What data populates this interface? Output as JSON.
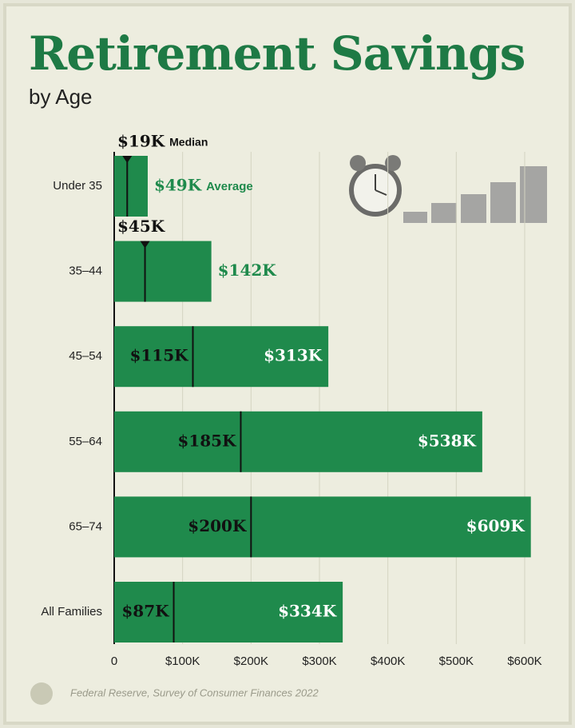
{
  "chart_data": {
    "type": "bar",
    "orientation": "horizontal",
    "title": "Retirement Savings",
    "subtitle": "by Age",
    "source": "Federal Reserve, Survey of Consumer Finances 2022",
    "categories": [
      "Under 35",
      "35–44",
      "45–54",
      "55–64",
      "65–74",
      "All Families"
    ],
    "series": [
      {
        "name": "Average",
        "color": "#1f8a4c",
        "values": [
          49000,
          142000,
          313000,
          538000,
          609000,
          334000
        ],
        "value_labels": [
          "$49K",
          "$142K",
          "$313K",
          "$538K",
          "$609K",
          "$334K"
        ]
      },
      {
        "name": "Median",
        "color": "#111111",
        "values": [
          19000,
          45000,
          115000,
          185000,
          200000,
          87000
        ],
        "value_labels": [
          "$19K",
          "$45K",
          "$115K",
          "$185K",
          "$200K",
          "$87K"
        ]
      }
    ],
    "xlim": [
      0,
      600000
    ],
    "xticks": [
      0,
      {
        "value": 100000,
        "label": "$100K"
      },
      {
        "value": 200000,
        "label": "$200K"
      },
      {
        "value": 300000,
        "label": "$300K"
      },
      {
        "value": 400000,
        "label": "$400K"
      },
      {
        "value": 500000,
        "label": "$500K"
      },
      {
        "value": 600000,
        "label": "$600K"
      }
    ],
    "grid": true
  }
}
